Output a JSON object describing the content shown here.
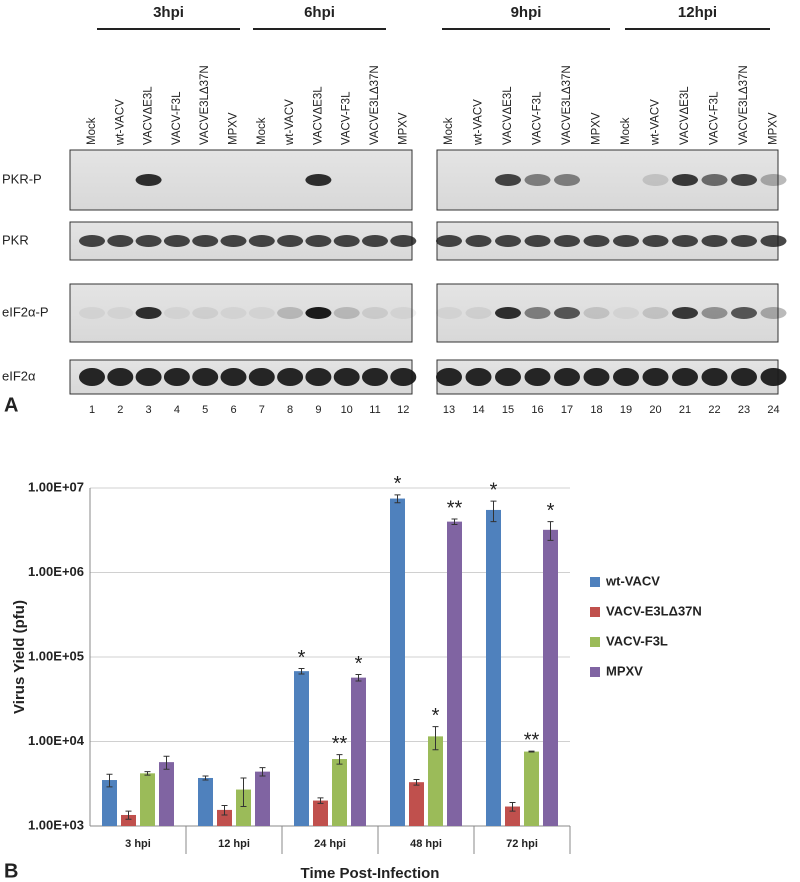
{
  "panel_a": {
    "label": "A",
    "time_groups": [
      "3hpi",
      "6hpi",
      "9hpi",
      "12hpi"
    ],
    "lane_labels": [
      "Mock",
      "wt-VACV",
      "VACVΔE3L",
      "VACV-F3L",
      "VACVE3LΔ37N",
      "MPXV",
      "Mock",
      "wt-VACV",
      "VACVΔE3L",
      "VACV-F3L",
      "VACVE3LΔ37N",
      "MPXV",
      "Mock",
      "wt-VACV",
      "VACVΔE3L",
      "VACV-F3L",
      "VACVE3LΔ37N",
      "MPXV",
      "Mock",
      "wt-VACV",
      "VACVΔE3L",
      "VACV-F3L",
      "VACVE3LΔ37N",
      "MPXV"
    ],
    "lane_numbers": [
      1,
      2,
      3,
      4,
      5,
      6,
      7,
      8,
      9,
      10,
      11,
      12,
      13,
      14,
      15,
      16,
      17,
      18,
      19,
      20,
      21,
      22,
      23,
      24
    ],
    "rows": [
      "PKR-P",
      "PKR",
      "eIF2α-P",
      "eIF2α"
    ]
  },
  "panel_b": {
    "label": "B"
  },
  "chart_data": {
    "type": "bar",
    "y_label": "Virus Yield (pfu)",
    "x_label": "Time Post-Infection",
    "categories": [
      "3 hpi",
      "12 hpi",
      "24 hpi",
      "48 hpi",
      "72 hpi"
    ],
    "log_scale": true,
    "grid": true,
    "legend": "right",
    "ylim": [
      1000,
      10000000
    ],
    "yticks": [
      {
        "value": 1000,
        "label": "1.00E+03"
      },
      {
        "value": 10000,
        "label": "1.00E+04"
      },
      {
        "value": 100000,
        "label": "1.00E+05"
      },
      {
        "value": 1000000,
        "label": "1.00E+06"
      },
      {
        "value": 10000000,
        "label": "1.00E+07"
      }
    ],
    "series": [
      {
        "name": "wt-VACV",
        "color": "#4f81bd",
        "values": [
          3500,
          3700,
          68000,
          7500000,
          5500000
        ],
        "errors": [
          600,
          200,
          5000,
          800000,
          1500000
        ],
        "annotations": [
          null,
          null,
          "*",
          "*",
          "*"
        ]
      },
      {
        "name": "VACV-E3LΔ37N",
        "color": "#c0504d",
        "values": [
          1350,
          1550,
          2000,
          3300,
          1700
        ],
        "errors": [
          150,
          200,
          150,
          250,
          200
        ],
        "annotations": [
          null,
          null,
          null,
          null,
          null
        ]
      },
      {
        "name": "VACV-F3L",
        "color": "#9bbb59",
        "values": [
          4200,
          2700,
          6200,
          11500,
          7600
        ],
        "errors": [
          200,
          1000,
          800,
          3500,
          100
        ],
        "annotations": [
          null,
          null,
          "**",
          "*",
          "**"
        ]
      },
      {
        "name": "MPXV",
        "color": "#8064a2",
        "values": [
          5700,
          4400,
          57000,
          4000000,
          3200000
        ],
        "errors": [
          1000,
          500,
          5000,
          300000,
          800000
        ],
        "annotations": [
          null,
          null,
          "*",
          "**",
          "*"
        ]
      }
    ]
  }
}
